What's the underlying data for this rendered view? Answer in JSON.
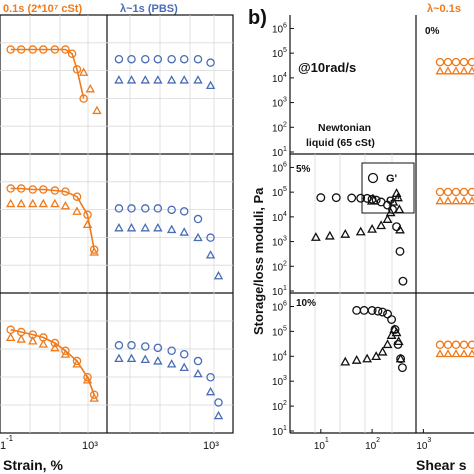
{
  "colors": {
    "orange": "#ee7a1c",
    "blue": "#4a6db5",
    "black": "#111111",
    "divider": "#d9d9d9"
  },
  "left_figure": {
    "col_title_orange": "0.1s (2*10⁷ cSt)",
    "col_title_blue": "λ~1s (PBS)",
    "xlabel": "Strain, %",
    "xtick": "10³",
    "xtick_left": "1",
    "xtick_left_exp": "-1"
  },
  "panel_b": {
    "label": "b)",
    "annotation": "@10rad/s",
    "ylabel": "Storage/loss moduli, Pa",
    "right_col_title": "λ~0.1s",
    "right_xlabel": "Shear s",
    "ytick_labels": [
      "10",
      "10",
      "10",
      "10",
      "10",
      "10"
    ],
    "ytick_exps": [
      "1",
      "2",
      "3",
      "4",
      "5",
      "6"
    ],
    "xtick_labels": [
      "10",
      "10",
      "10"
    ],
    "xtick_exps": [
      "1",
      "2",
      "3"
    ],
    "legend": {
      "g1": "G'",
      "g2": "G\""
    },
    "subplots": [
      {
        "pct": "0%",
        "title": ""
      },
      {
        "pct": "5%",
        "title_line1": "Newtonian",
        "title_line2": "liquid (65 cSt)"
      },
      {
        "pct": "10%",
        "title": ""
      }
    ]
  },
  "chart_data": [
    {
      "type": "scatter",
      "title": "Left panel grid (strain sweeps), rows = 0%, 5%, 10%",
      "xlabel": "Strain, %",
      "ylabel": "",
      "xscale": "log",
      "columns": [
        "0.1s (2*10^7 cSt)",
        "λ~1s (PBS)"
      ],
      "rows": [
        {
          "orange_G1": {
            "x": [
              0.1,
              0.3,
              1,
              3,
              10,
              30,
              60,
              100,
              200
            ],
            "y": [
              200000.0,
              200000.0,
              200000.0,
              200000.0,
              200000.0,
              200000.0,
              160000.0,
              70000.0,
              15000.0
            ]
          },
          "orange_G2": {
            "x": [
              200,
              400,
              800
            ],
            "y": [
              60000.0,
              25000.0,
              8000.0
            ]
          },
          "blue_G1": {
            "x": [
              0.1,
              0.3,
              1,
              3,
              10,
              30,
              100,
              300
            ],
            "y": [
              120000.0,
              120000.0,
              120000.0,
              120000.0,
              120000.0,
              120000.0,
              120000.0,
              100000.0
            ]
          },
          "blue_G2": {
            "x": [
              0.1,
              0.3,
              1,
              3,
              10,
              30,
              100,
              300
            ],
            "y": [
              40000.0,
              40000.0,
              40000.0,
              40000.0,
              40000.0,
              40000.0,
              40000.0,
              30000.0
            ]
          }
        },
        {
          "orange_G1": {
            "x": [
              0.1,
              0.3,
              1,
              3,
              10,
              30,
              100,
              300,
              600
            ],
            "y": [
              200000.0,
              200000.0,
              190000.0,
              190000.0,
              180000.0,
              170000.0,
              130000.0,
              50000.0,
              8000.0
            ]
          },
          "orange_G2": {
            "x": [
              0.1,
              0.3,
              1,
              3,
              10,
              30,
              100,
              300,
              600
            ],
            "y": [
              90000.0,
              90000.0,
              90000.0,
              90000.0,
              90000.0,
              80000.0,
              60000.0,
              30000.0,
              7000.0
            ]
          },
          "blue_G1": {
            "x": [
              0.1,
              0.3,
              1,
              3,
              10,
              30,
              100,
              300
            ],
            "y": [
              70000.0,
              70000.0,
              70000.0,
              70000.0,
              65000.0,
              60000.0,
              40000.0,
              15000.0
            ]
          },
          "blue_G2": {
            "x": [
              0.1,
              0.3,
              1,
              3,
              10,
              30,
              100,
              300,
              600
            ],
            "y": [
              25000.0,
              25000.0,
              25000.0,
              25000.0,
              23000.0,
              20000.0,
              15000.0,
              6000.0,
              2000.0
            ]
          }
        },
        {
          "orange_G1": {
            "x": [
              0.1,
              0.3,
              1,
              3,
              10,
              30,
              100,
              300,
              600
            ],
            "y": [
              180000.0,
              160000.0,
              140000.0,
              120000.0,
              90000.0,
              60000.0,
              35000.0,
              15000.0,
              6000.0
            ]
          },
          "orange_G2": {
            "x": [
              0.1,
              0.3,
              1,
              3,
              10,
              30,
              100,
              300,
              600
            ],
            "y": [
              120000.0,
              110000.0,
              100000.0,
              85000.0,
              70000.0,
              50000.0,
              30000.0,
              13000.0,
              5000.0
            ]
          },
          "blue_G1": {
            "x": [
              0.1,
              0.3,
              1,
              3,
              10,
              30,
              100,
              300,
              600
            ],
            "y": [
              80000.0,
              80000.0,
              75000.0,
              70000.0,
              60000.0,
              50000.0,
              35000.0,
              15000.0,
              4000.0
            ]
          },
          "blue_G2": {
            "x": [
              0.1,
              0.3,
              1,
              3,
              10,
              30,
              100,
              300,
              600
            ],
            "y": [
              40000.0,
              40000.0,
              38000.0,
              35000.0,
              30000.0,
              25000.0,
              18000.0,
              7000.0,
              2000.0
            ]
          }
        }
      ]
    },
    {
      "type": "scatter",
      "title": "Panel b) Newtonian liquid (65 cSt) @10rad/s",
      "xlabel": "Shear s",
      "ylabel": "Storage/loss moduli, Pa",
      "xscale": "log",
      "yscale": "log",
      "xlim": [
        3,
        600
      ],
      "ylim": [
        10,
        2000000
      ],
      "series": [
        {
          "name": "G'",
          "subplot": "5%",
          "x": [
            10,
            20,
            40,
            60,
            80,
            100,
            120,
            150,
            200,
            250,
            300,
            350,
            400
          ],
          "y": [
            60000,
            60000,
            58000,
            57000,
            56000,
            52000,
            48000,
            40000,
            30000,
            20000,
            4000,
            400,
            25
          ]
        },
        {
          "name": "G\"",
          "subplot": "5%",
          "x": [
            8,
            15,
            30,
            60,
            100,
            150,
            200,
            230,
            260,
            300,
            320,
            340,
            350
          ],
          "y": [
            1500,
            1700,
            2000,
            2500,
            3200,
            4500,
            8000,
            15000,
            40000,
            90000,
            60000,
            20000,
            3000
          ]
        },
        {
          "name": "G'",
          "subplot": "10%",
          "x": [
            50,
            70,
            100,
            130,
            160,
            200,
            240,
            280,
            320,
            360,
            390
          ],
          "y": [
            700000,
            700000,
            690000,
            650000,
            600000,
            500000,
            300000,
            120000,
            30000,
            8000,
            3500
          ]
        },
        {
          "name": "G\"",
          "subplot": "10%",
          "x": [
            30,
            50,
            80,
            120,
            160,
            200,
            240,
            270,
            300,
            330,
            360
          ],
          "y": [
            6000,
            7000,
            8000,
            10000,
            15000,
            30000,
            70000,
            120000,
            90000,
            40000,
            8000
          ]
        }
      ]
    },
    {
      "type": "scatter",
      "title": "Right column λ~0.1s (partially visible)",
      "xlabel": "Shear s",
      "ylabel": "",
      "series": [
        {
          "name": "0%",
          "y_level": 30000
        },
        {
          "name": "5%",
          "y_level": 70000
        },
        {
          "name": "10%",
          "y_level": 20000
        }
      ]
    }
  ]
}
